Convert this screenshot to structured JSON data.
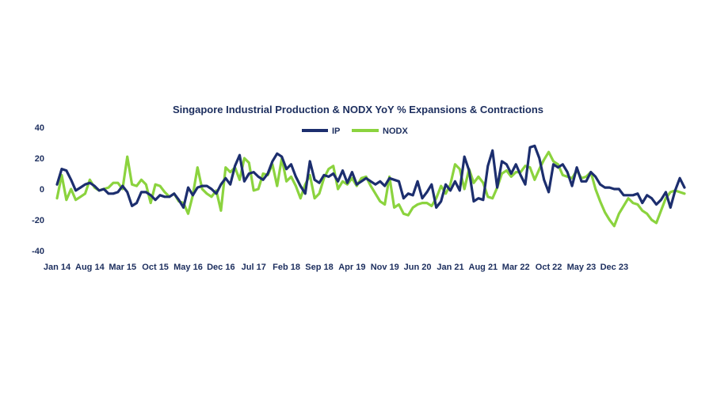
{
  "chart_data": {
    "type": "line",
    "title": "Singapore Industrial Production & NODX YoY % Expansions & Contractions",
    "xlabel": "",
    "ylabel": "",
    "ylim": [
      -40,
      40
    ],
    "yticks": [
      "40",
      "20",
      "0",
      "-20",
      "-40"
    ],
    "grid": false,
    "legend": "top-center",
    "x_tick_labels": [
      "Jan 14",
      "Aug 14",
      "Mar 15",
      "Oct 15",
      "May 16",
      "Dec 16",
      "Jul 17",
      "Feb 18",
      "Sep 18",
      "Apr 19",
      "Nov 19",
      "Jun 20",
      "Jan 21",
      "Aug 21",
      "Mar 22",
      "Oct 22",
      "May 23",
      "Dec 23"
    ],
    "x_start": "Jan 14",
    "x_end": "Dec 23",
    "series": [
      {
        "name": "IP",
        "color": "#1c2e6e",
        "values": [
          3,
          13,
          12,
          6,
          -1,
          1,
          3,
          4,
          2,
          -1,
          0,
          -3,
          -3,
          -2,
          2,
          -2,
          -11,
          -9,
          -2,
          -2,
          -4,
          -7,
          -4,
          -5,
          -5,
          -3,
          -7,
          -12,
          1,
          -4,
          1,
          2,
          2,
          0,
          -3,
          3,
          7,
          3,
          15,
          22,
          5,
          10,
          11,
          8,
          6,
          10,
          18,
          23,
          21,
          13,
          16,
          8,
          2,
          -3,
          18,
          6,
          4,
          9,
          8,
          10,
          5,
          12,
          4,
          11,
          3,
          5,
          7,
          5,
          3,
          5,
          2,
          7,
          6,
          5,
          -6,
          -3,
          -4,
          5,
          -6,
          -2,
          3,
          -12,
          -8,
          3,
          -1,
          5,
          -1,
          21,
          12,
          -8,
          -6,
          -7,
          15,
          25,
          1,
          18,
          16,
          10,
          16,
          9,
          3,
          27,
          28,
          20,
          6,
          -2,
          16,
          14,
          16,
          11,
          2,
          14,
          5,
          5,
          11,
          8,
          3,
          1,
          1,
          0,
          0,
          -4,
          -4,
          -4,
          -3,
          -9,
          -4,
          -6,
          -10,
          -7,
          -2,
          -12,
          -1,
          7,
          1
        ]
      },
      {
        "name": "NODX",
        "color": "#8bd33e",
        "values": [
          -6,
          9,
          -7,
          0,
          -7,
          -5,
          -3,
          6,
          1,
          -1,
          0,
          1,
          4,
          4,
          0,
          21,
          3,
          2,
          6,
          3,
          -9,
          3,
          2,
          -2,
          -5,
          -3,
          -8,
          -9,
          -16,
          -4,
          14,
          0,
          -3,
          -5,
          -1,
          -14,
          14,
          11,
          14,
          6,
          20,
          17,
          -1,
          0,
          10,
          9,
          16,
          2,
          20,
          5,
          8,
          2,
          -6,
          3,
          9,
          -6,
          -3,
          7,
          13,
          15,
          0,
          5,
          3,
          7,
          2,
          7,
          8,
          2,
          -3,
          -8,
          -10,
          8,
          -12,
          -10,
          -16,
          -17,
          -12,
          -10,
          -9,
          -9,
          -11,
          -6,
          2,
          -3,
          3,
          16,
          13,
          0,
          13,
          4,
          8,
          4,
          -5,
          -6,
          1,
          10,
          12,
          8,
          11,
          11,
          15,
          14,
          6,
          13,
          19,
          24,
          18,
          16,
          9,
          8,
          7,
          12,
          7,
          8,
          11,
          0,
          -8,
          -15,
          -20,
          -24,
          -16,
          -11,
          -6,
          -9,
          -10,
          -14,
          -16,
          -20,
          -22,
          -14,
          -6,
          -2,
          -1,
          -2,
          -3
        ]
      }
    ]
  }
}
